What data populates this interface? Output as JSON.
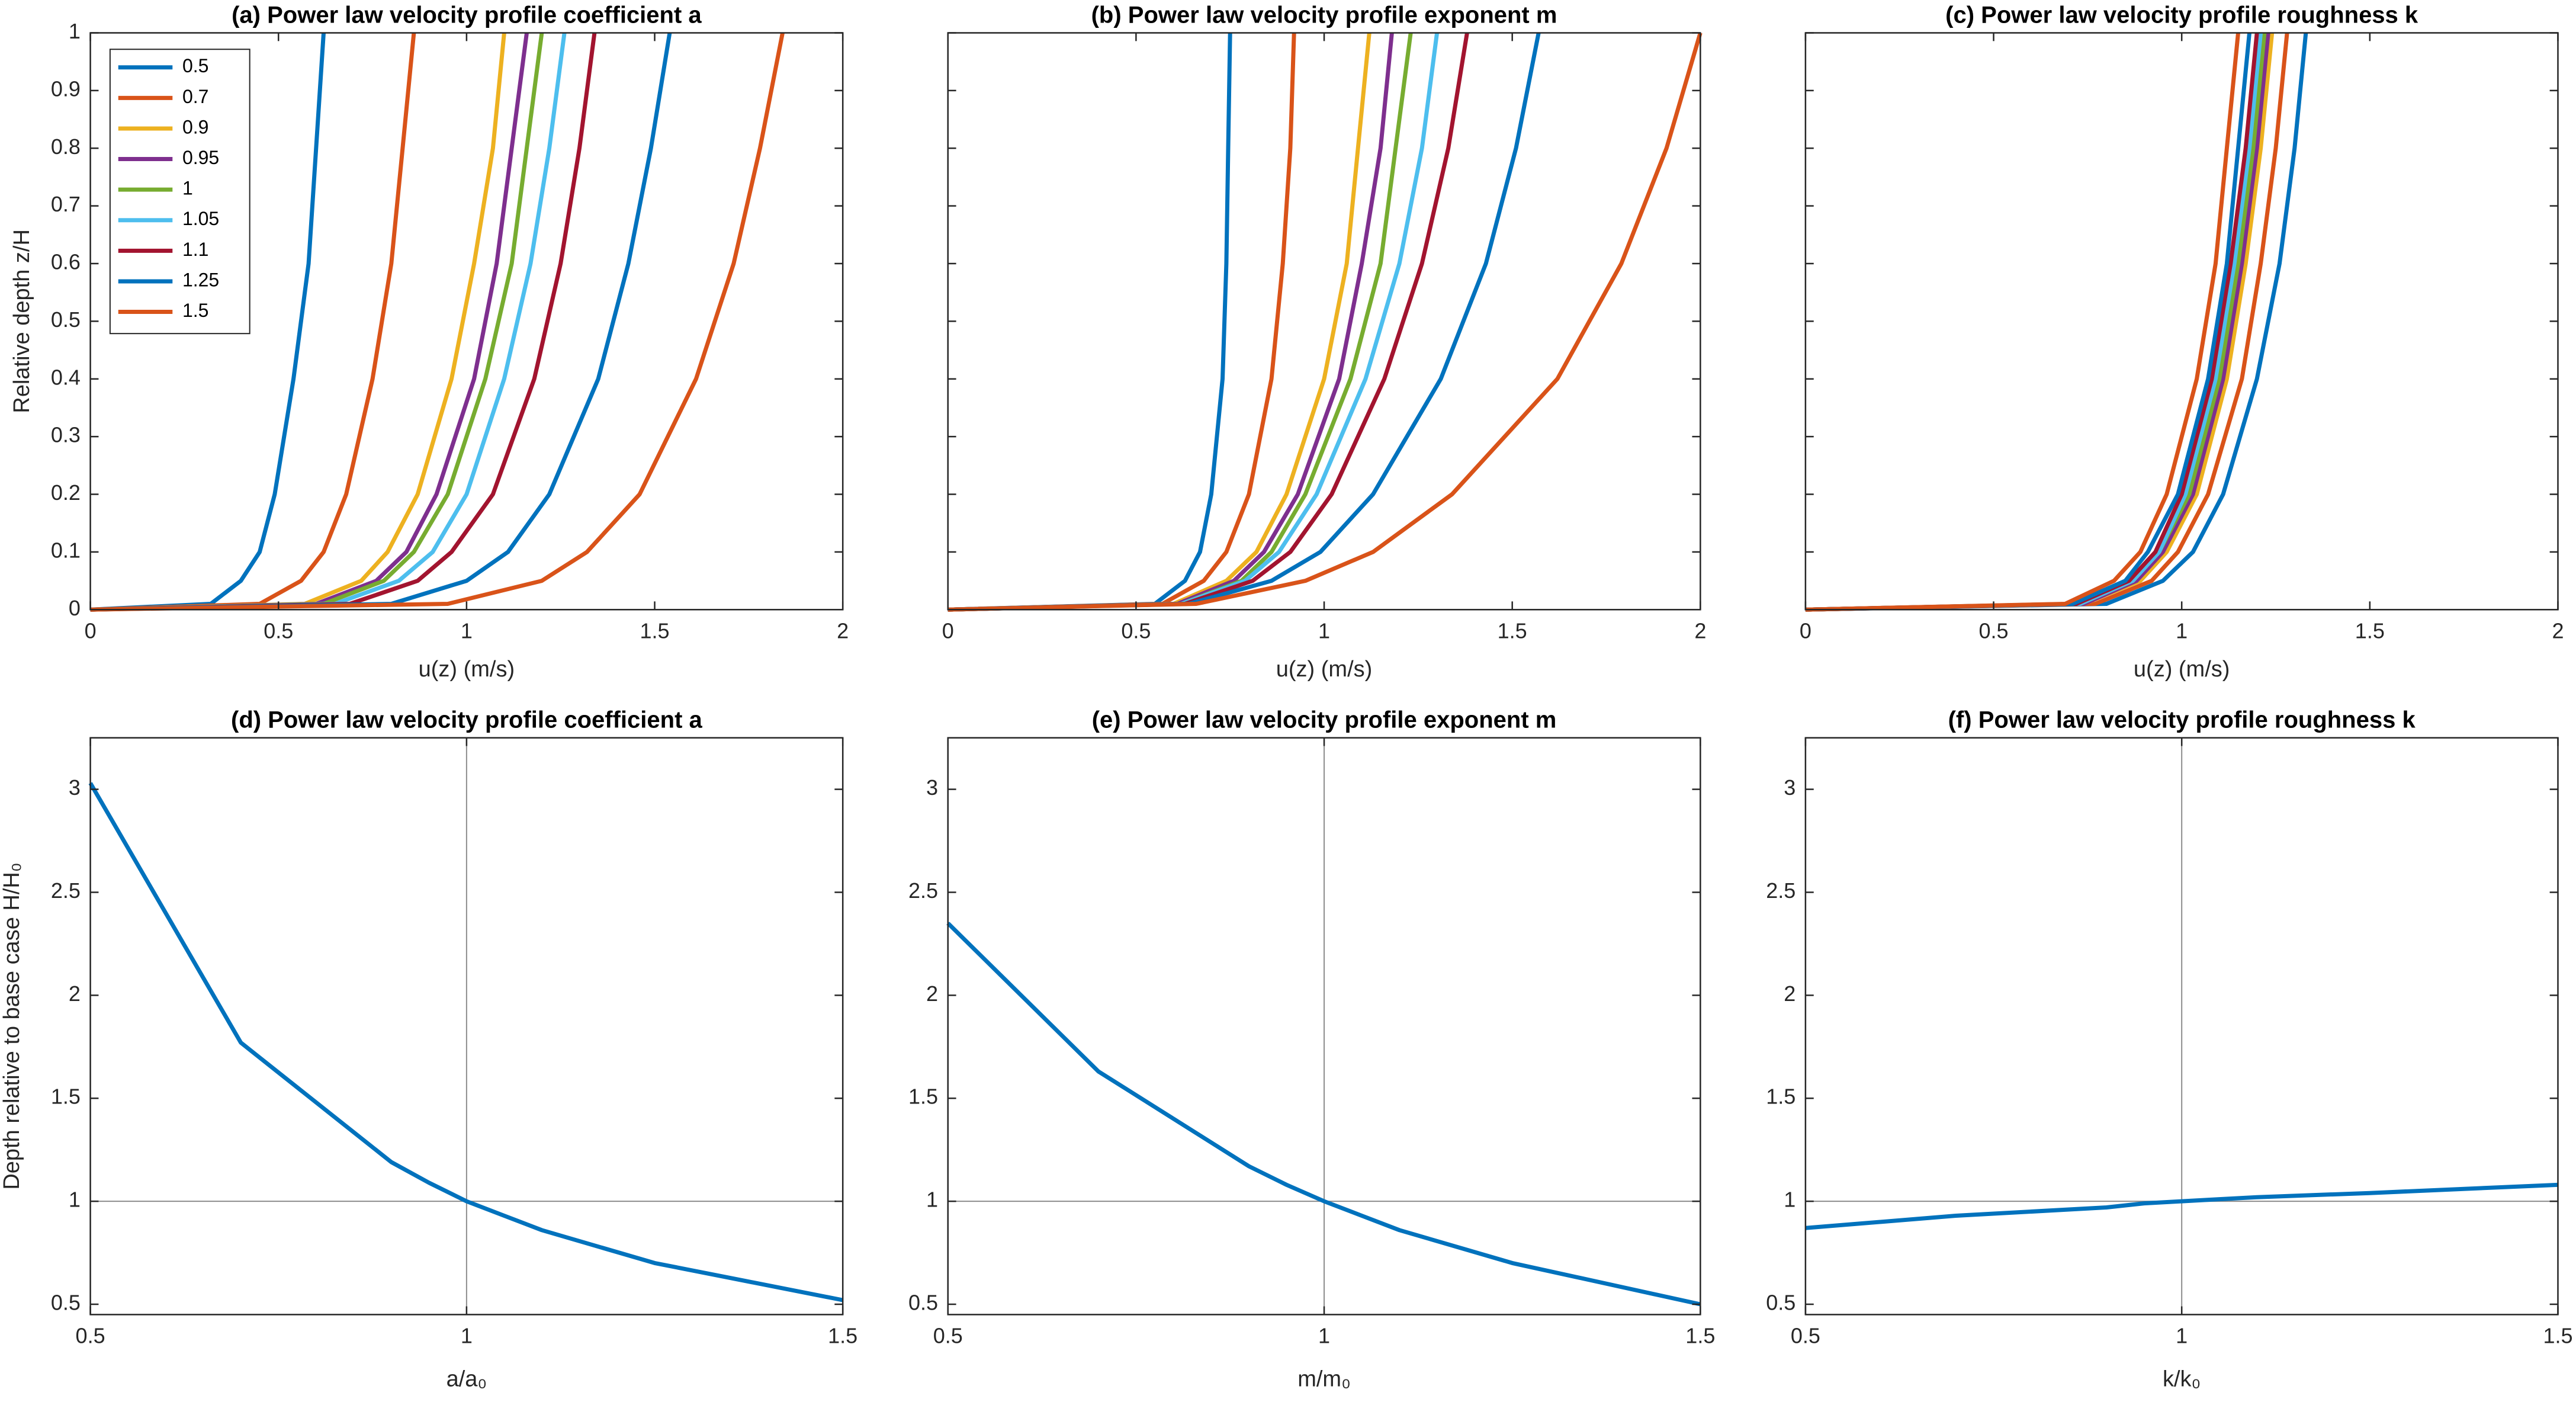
{
  "chart_data": [
    {
      "type": "line",
      "title": "(a) Power law velocity profile coefficient a",
      "xlabel": "u(z) (m/s)",
      "ylabel": "Relative depth z/H",
      "xlim": [
        0,
        2
      ],
      "xticks": [
        0,
        0.5,
        1,
        1.5,
        2
      ],
      "ylim": [
        0,
        1
      ],
      "yticks": [
        0,
        0.1,
        0.2,
        0.3,
        0.4,
        0.5,
        0.6,
        0.7,
        0.8,
        0.9,
        1
      ],
      "legend": "upper left",
      "series": [
        {
          "name": "0.5",
          "color": "#0072BD",
          "x": [
            0,
            0.32,
            0.4,
            0.45,
            0.49,
            0.54,
            0.58,
            0.6,
            0.62
          ],
          "values": [
            0,
            0.01,
            0.05,
            0.1,
            0.2,
            0.4,
            0.6,
            0.8,
            1
          ]
        },
        {
          "name": "0.7",
          "color": "#D95319",
          "x": [
            0,
            0.45,
            0.56,
            0.62,
            0.68,
            0.75,
            0.8,
            0.83,
            0.86
          ],
          "values": [
            0,
            0.01,
            0.05,
            0.1,
            0.2,
            0.4,
            0.6,
            0.8,
            1
          ]
        },
        {
          "name": "0.9",
          "color": "#EDB120",
          "x": [
            0,
            0.57,
            0.72,
            0.79,
            0.87,
            0.96,
            1.02,
            1.07,
            1.1
          ],
          "values": [
            0,
            0.01,
            0.05,
            0.1,
            0.2,
            0.4,
            0.6,
            0.8,
            1
          ]
        },
        {
          "name": "0.95",
          "color": "#7E2F8E",
          "x": [
            0,
            0.6,
            0.76,
            0.84,
            0.92,
            1.02,
            1.08,
            1.12,
            1.16
          ],
          "values": [
            0,
            0.01,
            0.05,
            0.1,
            0.2,
            0.4,
            0.6,
            0.8,
            1
          ]
        },
        {
          "name": "1",
          "color": "#77AC30",
          "x": [
            0,
            0.62,
            0.78,
            0.86,
            0.95,
            1.05,
            1.12,
            1.16,
            1.2
          ],
          "values": [
            0,
            0.01,
            0.05,
            0.1,
            0.2,
            0.4,
            0.6,
            0.8,
            1
          ]
        },
        {
          "name": "1.05",
          "color": "#4DBEEE",
          "x": [
            0,
            0.65,
            0.82,
            0.91,
            1.0,
            1.1,
            1.17,
            1.22,
            1.26
          ],
          "values": [
            0,
            0.01,
            0.05,
            0.1,
            0.2,
            0.4,
            0.6,
            0.8,
            1
          ]
        },
        {
          "name": "1.1",
          "color": "#A2142F",
          "x": [
            0,
            0.69,
            0.87,
            0.96,
            1.07,
            1.18,
            1.25,
            1.3,
            1.34
          ],
          "values": [
            0,
            0.01,
            0.05,
            0.1,
            0.2,
            0.4,
            0.6,
            0.8,
            1
          ]
        },
        {
          "name": "1.25",
          "color": "#0072BD",
          "x": [
            0,
            0.8,
            1.0,
            1.11,
            1.22,
            1.35,
            1.43,
            1.49,
            1.54
          ],
          "values": [
            0,
            0.01,
            0.05,
            0.1,
            0.2,
            0.4,
            0.6,
            0.8,
            1
          ]
        },
        {
          "name": "1.5",
          "color": "#D95319",
          "x": [
            0,
            0.95,
            1.2,
            1.32,
            1.46,
            1.61,
            1.71,
            1.78,
            1.84
          ],
          "values": [
            0,
            0.01,
            0.05,
            0.1,
            0.2,
            0.4,
            0.6,
            0.8,
            1
          ]
        }
      ]
    },
    {
      "type": "line",
      "title": "(b) Power law velocity profile exponent m",
      "xlabel": "u(z) (m/s)",
      "xlim": [
        0,
        2
      ],
      "xticks": [
        0,
        0.5,
        1,
        1.5,
        2
      ],
      "ylim": [
        0,
        1
      ],
      "yticks": [
        0,
        0.1,
        0.2,
        0.3,
        0.4,
        0.5,
        0.6,
        0.7,
        0.8,
        0.9,
        1
      ],
      "ytick_labels": false,
      "series": [
        {
          "color": "#0072BD",
          "x": [
            0,
            0.55,
            0.63,
            0.67,
            0.7,
            0.73,
            0.74,
            0.745,
            0.75
          ],
          "values": [
            0,
            0.01,
            0.05,
            0.1,
            0.2,
            0.4,
            0.6,
            0.8,
            1
          ]
        },
        {
          "color": "#D95319",
          "x": [
            0,
            0.57,
            0.68,
            0.74,
            0.8,
            0.86,
            0.89,
            0.91,
            0.92
          ],
          "values": [
            0,
            0.01,
            0.05,
            0.1,
            0.2,
            0.4,
            0.6,
            0.8,
            1
          ]
        },
        {
          "color": "#EDB120",
          "x": [
            0,
            0.6,
            0.74,
            0.82,
            0.9,
            1.0,
            1.06,
            1.09,
            1.12
          ],
          "values": [
            0,
            0.01,
            0.05,
            0.1,
            0.2,
            0.4,
            0.6,
            0.8,
            1
          ]
        },
        {
          "color": "#7E2F8E",
          "x": [
            0,
            0.61,
            0.76,
            0.84,
            0.93,
            1.04,
            1.1,
            1.15,
            1.18
          ],
          "values": [
            0,
            0.01,
            0.05,
            0.1,
            0.2,
            0.4,
            0.6,
            0.8,
            1
          ]
        },
        {
          "color": "#77AC30",
          "x": [
            0,
            0.62,
            0.78,
            0.86,
            0.95,
            1.07,
            1.15,
            1.19,
            1.23
          ],
          "values": [
            0,
            0.01,
            0.05,
            0.1,
            0.2,
            0.4,
            0.6,
            0.8,
            1
          ]
        },
        {
          "color": "#4DBEEE",
          "x": [
            0,
            0.62,
            0.79,
            0.88,
            0.98,
            1.11,
            1.2,
            1.26,
            1.3
          ],
          "values": [
            0,
            0.01,
            0.05,
            0.1,
            0.2,
            0.4,
            0.6,
            0.8,
            1
          ]
        },
        {
          "color": "#A2142F",
          "x": [
            0,
            0.63,
            0.81,
            0.91,
            1.02,
            1.16,
            1.26,
            1.33,
            1.38
          ],
          "values": [
            0,
            0.01,
            0.05,
            0.1,
            0.2,
            0.4,
            0.6,
            0.8,
            1
          ]
        },
        {
          "color": "#0072BD",
          "x": [
            0,
            0.64,
            0.86,
            0.99,
            1.13,
            1.31,
            1.43,
            1.51,
            1.57
          ],
          "values": [
            0,
            0.01,
            0.05,
            0.1,
            0.2,
            0.4,
            0.6,
            0.8,
            1
          ]
        },
        {
          "color": "#D95319",
          "x": [
            0,
            0.66,
            0.95,
            1.13,
            1.34,
            1.62,
            1.79,
            1.91,
            2.0
          ],
          "values": [
            0,
            0.01,
            0.05,
            0.1,
            0.2,
            0.4,
            0.6,
            0.8,
            1
          ]
        }
      ]
    },
    {
      "type": "line",
      "title": "(c) Power law velocity profile roughness k",
      "xlabel": "u(z) (m/s)",
      "xlim": [
        0,
        2
      ],
      "xticks": [
        0,
        0.5,
        1,
        1.5,
        2
      ],
      "ylim": [
        0,
        1
      ],
      "yticks": [
        0,
        0.1,
        0.2,
        0.3,
        0.4,
        0.5,
        0.6,
        0.7,
        0.8,
        0.9,
        1
      ],
      "ytick_labels": false,
      "series": [
        {
          "color": "#0072BD",
          "x": [
            0,
            0.8,
            0.95,
            1.03,
            1.11,
            1.2,
            1.26,
            1.3,
            1.33
          ],
          "values": [
            0,
            0.01,
            0.05,
            0.1,
            0.2,
            0.4,
            0.6,
            0.8,
            1
          ]
        },
        {
          "color": "#D95319",
          "x": [
            0,
            0.77,
            0.92,
            0.99,
            1.07,
            1.16,
            1.21,
            1.25,
            1.28
          ],
          "values": [
            0,
            0.01,
            0.05,
            0.1,
            0.2,
            0.4,
            0.6,
            0.8,
            1
          ]
        },
        {
          "color": "#EDB120",
          "x": [
            0,
            0.74,
            0.89,
            0.96,
            1.04,
            1.12,
            1.17,
            1.21,
            1.24
          ],
          "values": [
            0,
            0.01,
            0.05,
            0.1,
            0.2,
            0.4,
            0.6,
            0.8,
            1
          ]
        },
        {
          "color": "#7E2F8E",
          "x": [
            0,
            0.74,
            0.88,
            0.95,
            1.03,
            1.11,
            1.16,
            1.2,
            1.23
          ],
          "values": [
            0,
            0.01,
            0.05,
            0.1,
            0.2,
            0.4,
            0.6,
            0.8,
            1
          ]
        },
        {
          "color": "#77AC30",
          "x": [
            0,
            0.73,
            0.87,
            0.94,
            1.02,
            1.1,
            1.15,
            1.19,
            1.22
          ],
          "values": [
            0,
            0.01,
            0.05,
            0.1,
            0.2,
            0.4,
            0.6,
            0.8,
            1
          ]
        },
        {
          "color": "#4DBEEE",
          "x": [
            0,
            0.73,
            0.87,
            0.94,
            1.01,
            1.09,
            1.14,
            1.18,
            1.21
          ],
          "values": [
            0,
            0.01,
            0.05,
            0.1,
            0.2,
            0.4,
            0.6,
            0.8,
            1
          ]
        },
        {
          "color": "#A2142F",
          "x": [
            0,
            0.72,
            0.86,
            0.93,
            1.0,
            1.08,
            1.13,
            1.17,
            1.2
          ],
          "values": [
            0,
            0.01,
            0.05,
            0.1,
            0.2,
            0.4,
            0.6,
            0.8,
            1
          ]
        },
        {
          "color": "#0072BD",
          "x": [
            0,
            0.71,
            0.85,
            0.91,
            0.99,
            1.07,
            1.12,
            1.15,
            1.18
          ],
          "values": [
            0,
            0.01,
            0.05,
            0.1,
            0.2,
            0.4,
            0.6,
            0.8,
            1
          ]
        },
        {
          "color": "#D95319",
          "x": [
            0,
            0.69,
            0.82,
            0.89,
            0.96,
            1.04,
            1.09,
            1.12,
            1.15
          ],
          "values": [
            0,
            0.01,
            0.05,
            0.1,
            0.2,
            0.4,
            0.6,
            0.8,
            1
          ]
        }
      ]
    },
    {
      "type": "line",
      "title": "(d) Power law velocity profile coefficient a",
      "xlabel": "a/a₀",
      "ylabel": "Depth relative to base case H/H₀",
      "xlim": [
        0.5,
        1.5
      ],
      "xticks": [
        0.5,
        1,
        1.5
      ],
      "ylim": [
        0.45,
        3.25
      ],
      "yticks": [
        0.5,
        1,
        1.5,
        2,
        2.5,
        3
      ],
      "vline": 1,
      "hline": 1,
      "x": [
        0.5,
        0.7,
        0.9,
        0.95,
        1,
        1.05,
        1.1,
        1.25,
        1.5
      ],
      "series": [
        {
          "color": "#0072BD",
          "values": [
            3.03,
            1.77,
            1.19,
            1.09,
            1.0,
            0.93,
            0.86,
            0.7,
            0.52
          ]
        }
      ]
    },
    {
      "type": "line",
      "title": "(e) Power law velocity profile exponent m",
      "xlabel": "m/m₀",
      "xlim": [
        0.5,
        1.5
      ],
      "xticks": [
        0.5,
        1,
        1.5
      ],
      "ylim": [
        0.45,
        3.25
      ],
      "yticks": [
        0.5,
        1,
        1.5,
        2,
        2.5,
        3
      ],
      "vline": 1,
      "hline": 1,
      "x": [
        0.5,
        0.7,
        0.9,
        0.95,
        1,
        1.05,
        1.1,
        1.25,
        1.5
      ],
      "series": [
        {
          "color": "#0072BD",
          "values": [
            2.35,
            1.63,
            1.17,
            1.08,
            1.0,
            0.93,
            0.86,
            0.7,
            0.5
          ]
        }
      ]
    },
    {
      "type": "line",
      "title": "(f) Power law velocity profile roughness k",
      "xlabel": "k/k₀",
      "xlim": [
        0.5,
        1.5
      ],
      "xticks": [
        0.5,
        1,
        1.5
      ],
      "ylim": [
        0.45,
        3.25
      ],
      "yticks": [
        0.5,
        1,
        1.5,
        2,
        2.5,
        3
      ],
      "vline": 1,
      "hline": 1,
      "x": [
        0.5,
        0.7,
        0.9,
        0.95,
        1,
        1.05,
        1.1,
        1.25,
        1.5
      ],
      "series": [
        {
          "color": "#0072BD",
          "values": [
            0.87,
            0.93,
            0.97,
            0.99,
            1.0,
            1.01,
            1.02,
            1.04,
            1.08
          ]
        }
      ]
    }
  ]
}
